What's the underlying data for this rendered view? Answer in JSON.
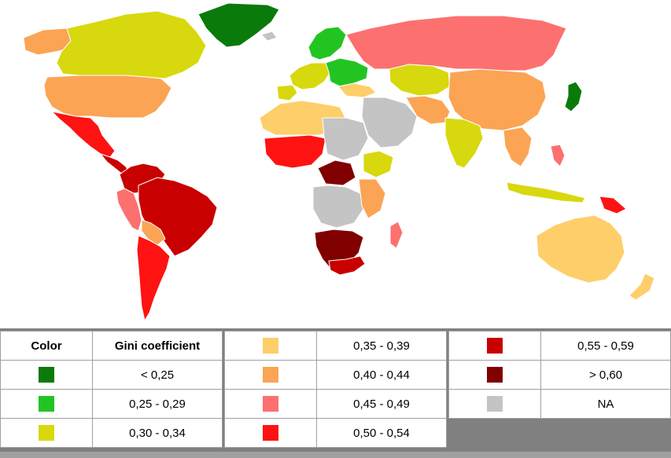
{
  "legend": {
    "header": {
      "color_label": "Color",
      "value_label": "Gini coefficient"
    },
    "ranges": [
      {
        "label": "< 0,25",
        "color": "#0a7a0a"
      },
      {
        "label": "0,25 - 0,29",
        "color": "#22c422"
      },
      {
        "label": "0,30 - 0,34",
        "color": "#d8d80e"
      },
      {
        "label": "0,35 - 0,39",
        "color": "#fdce6a"
      },
      {
        "label": "0,40 - 0,44",
        "color": "#fba454"
      },
      {
        "label": "0,45 - 0,49",
        "color": "#fd7070"
      },
      {
        "label": "0,50 - 0,54",
        "color": "#ff1212"
      },
      {
        "label": "0,55 - 0,59",
        "color": "#c80000"
      },
      {
        "label": "> 0,60",
        "color": "#800000"
      },
      {
        "label": "NA",
        "color": "#c4c4c4"
      }
    ]
  }
}
